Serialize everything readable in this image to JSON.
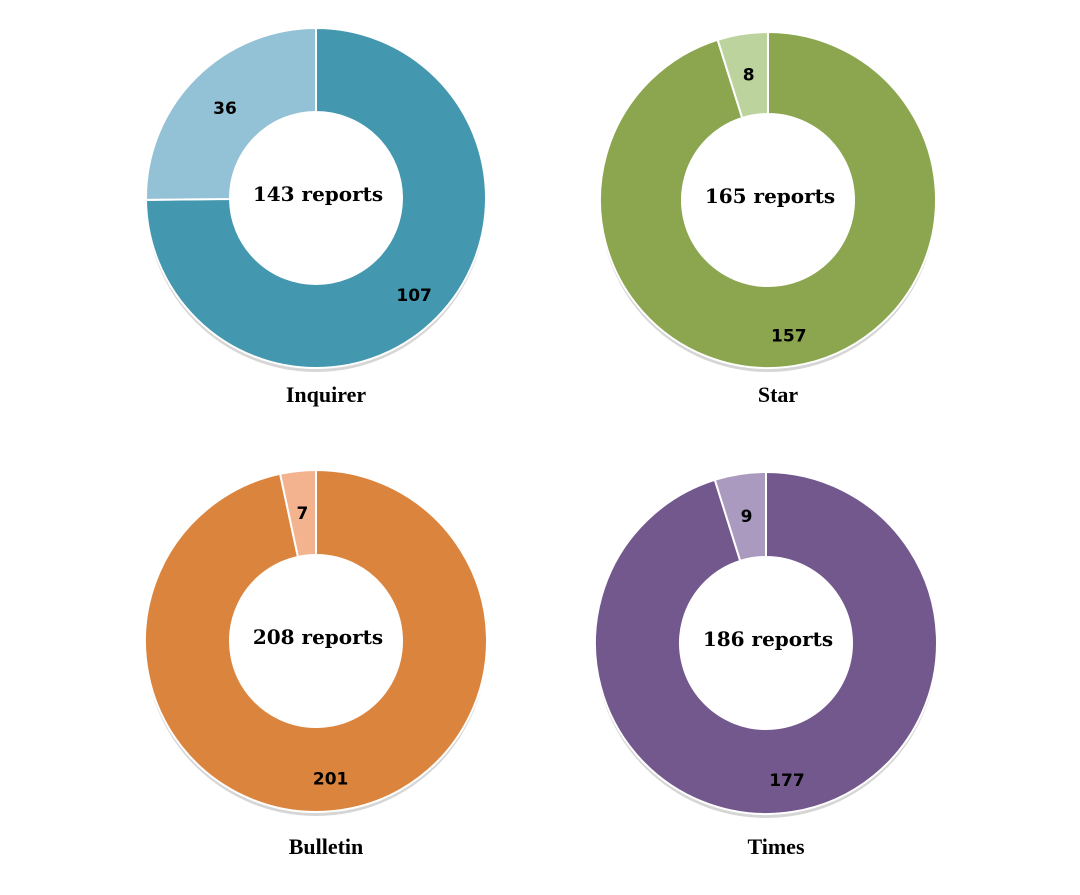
{
  "chart_data": [
    {
      "type": "pie",
      "title": "Inquirer",
      "center_label": "143 reports",
      "slices": [
        {
          "value": 107,
          "color": "#4397AF"
        },
        {
          "value": 36,
          "color": "#93C1D5"
        }
      ]
    },
    {
      "type": "pie",
      "title": "Star",
      "center_label": "165 reports",
      "slices": [
        {
          "value": 157,
          "color": "#8BA64F"
        },
        {
          "value": 8,
          "color": "#BCD39E"
        }
      ]
    },
    {
      "type": "pie",
      "title": "Bulletin",
      "center_label": "208 reports",
      "slices": [
        {
          "value": 201,
          "color": "#DB843E"
        },
        {
          "value": 7,
          "color": "#F4B38F"
        }
      ]
    },
    {
      "type": "pie",
      "title": "Times",
      "center_label": "186 reports",
      "slices": [
        {
          "value": 177,
          "color": "#72588D"
        },
        {
          "value": 9,
          "color": "#AA9ABF"
        }
      ]
    }
  ]
}
